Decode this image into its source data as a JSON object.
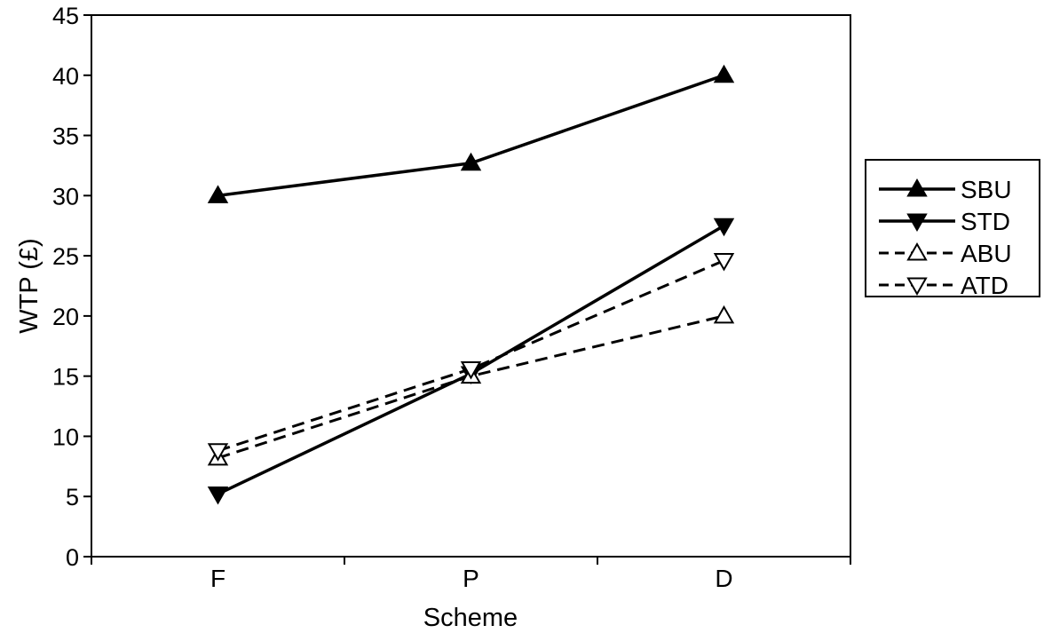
{
  "chart_data": {
    "type": "line",
    "title": "",
    "xlabel": "Scheme",
    "ylabel": "WTP (£)",
    "categories": [
      "F",
      "P",
      "D"
    ],
    "ylim": [
      0,
      45
    ],
    "yticks": [
      0,
      5,
      10,
      15,
      20,
      25,
      30,
      35,
      40,
      45
    ],
    "grid": false,
    "legend_position": "right",
    "series": [
      {
        "name": "SBU",
        "values": [
          30,
          32.7,
          40
        ],
        "line": "solid",
        "marker": "triangle-up",
        "fill": "filled"
      },
      {
        "name": "STD",
        "values": [
          5.2,
          15.2,
          27.5
        ],
        "line": "solid",
        "marker": "triangle-down",
        "fill": "filled"
      },
      {
        "name": "ABU",
        "values": [
          8.2,
          15,
          20
        ],
        "line": "dashed",
        "marker": "triangle-up",
        "fill": "open"
      },
      {
        "name": "ATD",
        "values": [
          8.8,
          15.6,
          24.6
        ],
        "line": "dashed",
        "marker": "triangle-down",
        "fill": "open"
      }
    ]
  }
}
